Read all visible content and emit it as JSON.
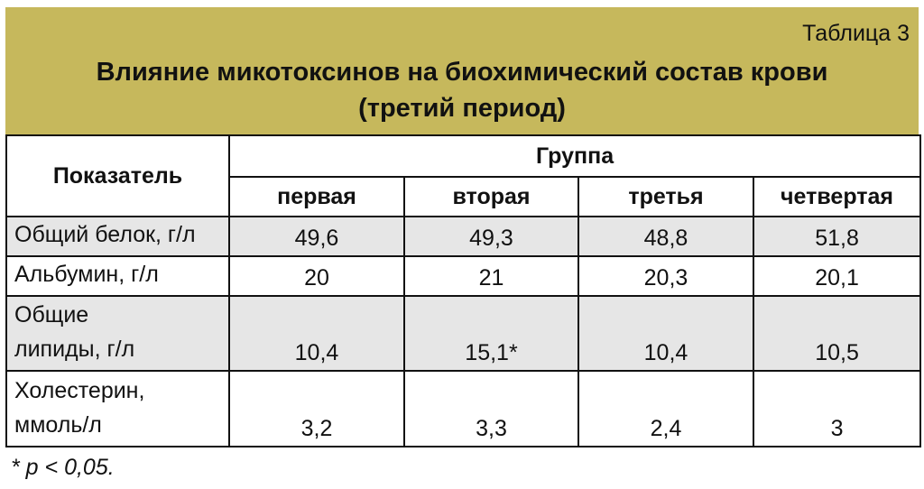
{
  "table_number": "Таблица 3",
  "title_line1": "Влияние микотоксинов на биохимический состав крови",
  "title_line2": "(третий период)",
  "header": {
    "indicator": "Показатель",
    "group": "Группа",
    "groups": [
      "первая",
      "вторая",
      "третья",
      "четвертая"
    ]
  },
  "rows": [
    {
      "label": "Общий белок, г/л",
      "values": [
        "49,6",
        "49,3",
        "48,8",
        "51,8"
      ]
    },
    {
      "label": "Альбумин, г/л",
      "values": [
        "20",
        "21",
        "20,3",
        "20,1"
      ]
    },
    {
      "label1": "Общие",
      "label2": "липиды, г/л",
      "values": [
        "10,4",
        "15,1*",
        "10,4",
        "10,5"
      ]
    },
    {
      "label1": "Холестерин,",
      "label2": "ммоль/л",
      "values": [
        "3,2",
        "3,3",
        "2,4",
        "3"
      ]
    }
  ],
  "footnote": "* p < 0,05."
}
